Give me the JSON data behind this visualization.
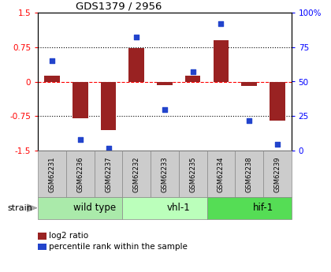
{
  "title": "GDS1379 / 2956",
  "samples": [
    "GSM62231",
    "GSM62236",
    "GSM62237",
    "GSM62232",
    "GSM62233",
    "GSM62235",
    "GSM62234",
    "GSM62238",
    "GSM62239"
  ],
  "log2_ratio": [
    0.12,
    -0.8,
    -1.05,
    0.72,
    -0.07,
    0.12,
    0.9,
    -0.1,
    -0.85
  ],
  "percentile": [
    65,
    8,
    2,
    82,
    30,
    57,
    92,
    22,
    5
  ],
  "groups": [
    {
      "label": "wild type",
      "start": 0,
      "end": 3,
      "color": "#aaeaaa"
    },
    {
      "label": "vhl-1",
      "start": 3,
      "end": 6,
      "color": "#bbffbb"
    },
    {
      "label": "hif-1",
      "start": 6,
      "end": 9,
      "color": "#55dd55"
    }
  ],
  "strain_label": "strain",
  "bar_color": "#992222",
  "dot_color": "#2244cc",
  "ylim_left": [
    -1.5,
    1.5
  ],
  "ylim_right": [
    0,
    100
  ],
  "yticks_left": [
    -1.5,
    -0.75,
    0,
    0.75,
    1.5
  ],
  "ytick_labels_left": [
    "-1.5",
    "-0.75",
    "0",
    "0.75",
    "1.5"
  ],
  "yticks_right": [
    0,
    25,
    50,
    75,
    100
  ],
  "ytick_labels_right": [
    "0",
    "25",
    "50",
    "75",
    "100%"
  ],
  "hlines": [
    -0.75,
    0,
    0.75
  ],
  "hline_styles": [
    "dotted",
    "dashed",
    "dotted"
  ],
  "hline_colors": [
    "black",
    "red",
    "black"
  ],
  "bar_width": 0.55,
  "legend_log2": "log2 ratio",
  "legend_pct": "percentile rank within the sample",
  "bg_color": "#ffffff",
  "plot_bg_color": "#ffffff",
  "sample_box_color": "#cccccc"
}
